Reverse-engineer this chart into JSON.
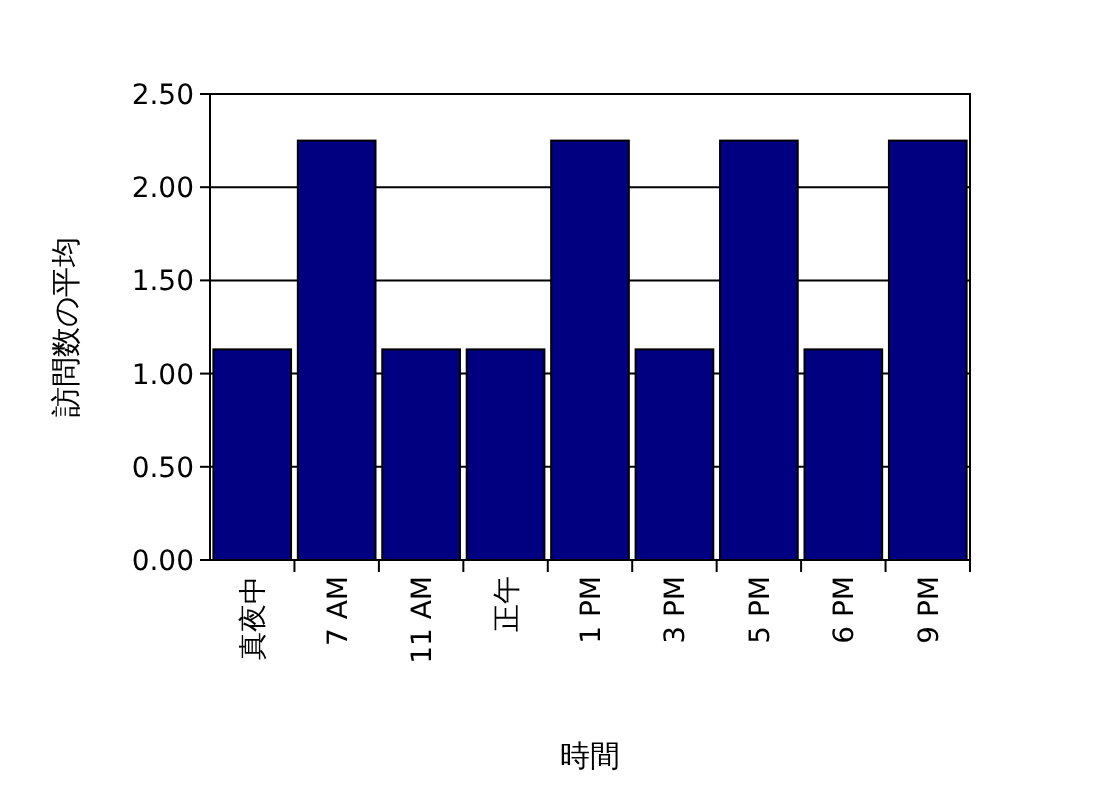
{
  "chart_data": {
    "type": "bar",
    "xlabel": "時間",
    "ylabel": "訪問数の平均",
    "categories": [
      "真夜中",
      "7 AM",
      "11 AM",
      "正午",
      "1 PM",
      "3 PM",
      "5 PM",
      "6 PM",
      "9 PM"
    ],
    "values": [
      1.13,
      2.25,
      1.13,
      1.13,
      2.25,
      1.13,
      2.25,
      1.13,
      2.25
    ],
    "color": "#000080",
    "ylim": [
      0,
      2.5
    ],
    "yticks": [
      {
        "value": 0,
        "label": "0.00"
      },
      {
        "value": 0.5,
        "label": "0.50"
      },
      {
        "value": 1,
        "label": "1.00"
      },
      {
        "value": 1.5,
        "label": "1.50"
      },
      {
        "value": 2,
        "label": "2.00"
      },
      {
        "value": 2.5,
        "label": "2.50"
      }
    ],
    "grid": "y"
  }
}
